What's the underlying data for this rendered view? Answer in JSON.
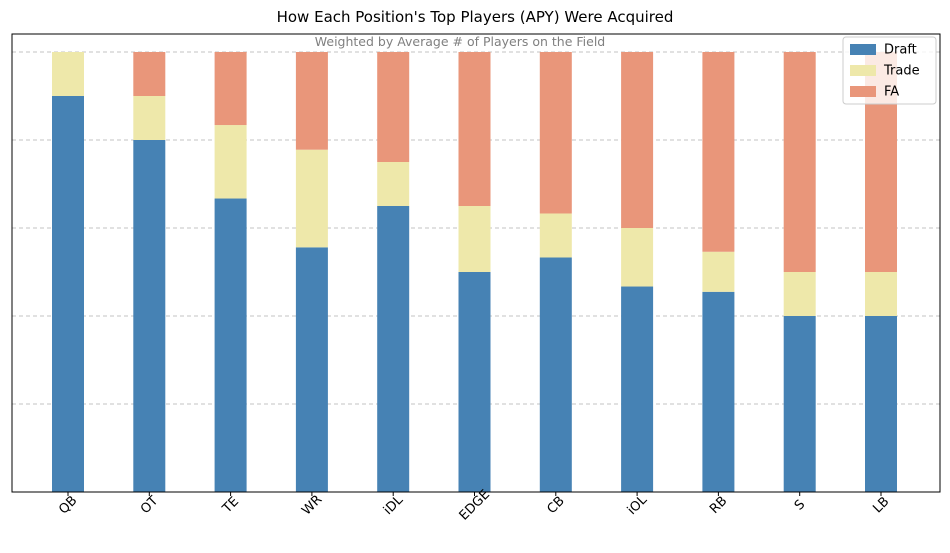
{
  "chart_data": {
    "type": "bar",
    "stacked": true,
    "title": "How Each Position's Top Players (APY) Were Acquired",
    "subtitle": "Weighted by Average # of Players on the Field",
    "xlabel": "",
    "ylabel": "",
    "categories": [
      "QB",
      "OT",
      "TE",
      "WR",
      "iDL",
      "EDGE",
      "CB",
      "iOL",
      "RB",
      "S",
      "LB"
    ],
    "series": [
      {
        "name": "Draft",
        "color": "#4682b4",
        "values": [
          0.9,
          0.8,
          0.667,
          0.556,
          0.65,
          0.5,
          0.533,
          0.467,
          0.455,
          0.4,
          0.4
        ]
      },
      {
        "name": "Trade",
        "color": "#eee8aa",
        "values": [
          0.1,
          0.1,
          0.167,
          0.222,
          0.1,
          0.15,
          0.1,
          0.133,
          0.091,
          0.1,
          0.1
        ]
      },
      {
        "name": "FA",
        "color": "#e9967a",
        "values": [
          0.0,
          0.1,
          0.166,
          0.222,
          0.25,
          0.35,
          0.367,
          0.4,
          0.454,
          0.5,
          0.5
        ]
      }
    ],
    "ylim": [
      0,
      1.0
    ],
    "grid": {
      "y": true,
      "x": false,
      "style": "dashed"
    },
    "y_tick_labels_shown": false,
    "legend": {
      "position": "top-right"
    }
  }
}
